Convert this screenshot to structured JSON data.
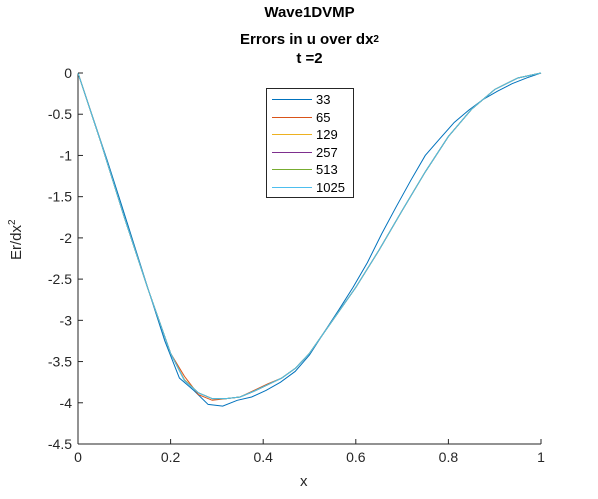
{
  "chart_data": {
    "type": "line",
    "title": [
      "Wave1DVMP",
      "Errors in u over dx",
      "t =2"
    ],
    "title_superscript": "2",
    "xlabel": "x",
    "ylabel": "Er/dx",
    "ylabel_superscript": "2",
    "xlim": [
      0,
      1
    ],
    "ylim": [
      -4.5,
      0
    ],
    "xticks": [
      "0",
      "0.2",
      "0.4",
      "0.6",
      "0.8",
      "1"
    ],
    "yticks": [
      "0",
      "-0.5",
      "-1",
      "-1.5",
      "-2",
      "-2.5",
      "-3",
      "-3.5",
      "-4",
      "-4.5"
    ],
    "legend_position": "top-center",
    "grid": false,
    "series": [
      {
        "name": "33",
        "color": "#0072BD",
        "x": [
          0,
          0.031,
          0.0625,
          0.094,
          0.125,
          0.156,
          0.1875,
          0.219,
          0.25,
          0.281,
          0.3125,
          0.344,
          0.375,
          0.406,
          0.4375,
          0.469,
          0.5,
          0.531,
          0.5625,
          0.594,
          0.625,
          0.656,
          0.6875,
          0.719,
          0.75,
          0.781,
          0.8125,
          0.844,
          0.875,
          0.906,
          0.9375,
          0.969,
          1
        ],
        "y": [
          0,
          -0.52,
          -1.05,
          -1.6,
          -2.15,
          -2.7,
          -3.25,
          -3.7,
          -3.85,
          -4.02,
          -4.04,
          -3.97,
          -3.93,
          -3.85,
          -3.75,
          -3.62,
          -3.42,
          -3.15,
          -2.88,
          -2.6,
          -2.3,
          -1.95,
          -1.62,
          -1.3,
          -1.0,
          -0.8,
          -0.6,
          -0.45,
          -0.32,
          -0.22,
          -0.13,
          -0.06,
          0
        ]
      },
      {
        "name": "65",
        "color": "#D95319",
        "x": [
          0,
          0.05,
          0.1,
          0.15,
          0.2,
          0.23,
          0.26,
          0.29,
          0.32,
          0.35,
          0.38,
          0.41,
          0.44,
          0.47,
          0.5,
          0.55,
          0.6,
          0.65,
          0.7,
          0.75,
          0.8,
          0.85,
          0.9,
          0.95,
          1
        ],
        "y": [
          0,
          -0.85,
          -1.75,
          -2.6,
          -3.4,
          -3.68,
          -3.9,
          -3.97,
          -3.95,
          -3.93,
          -3.85,
          -3.77,
          -3.7,
          -3.58,
          -3.4,
          -3.0,
          -2.6,
          -2.15,
          -1.67,
          -1.2,
          -0.77,
          -0.44,
          -0.2,
          -0.06,
          0
        ]
      },
      {
        "name": "129",
        "color": "#EDB120",
        "x": [
          0,
          0.05,
          0.1,
          0.15,
          0.2,
          0.23,
          0.26,
          0.29,
          0.32,
          0.35,
          0.38,
          0.41,
          0.44,
          0.47,
          0.5,
          0.55,
          0.6,
          0.65,
          0.7,
          0.75,
          0.8,
          0.85,
          0.9,
          0.95,
          1
        ],
        "y": [
          0,
          -0.85,
          -1.75,
          -2.6,
          -3.4,
          -3.72,
          -3.88,
          -3.95,
          -3.95,
          -3.93,
          -3.86,
          -3.78,
          -3.7,
          -3.58,
          -3.4,
          -3.0,
          -2.6,
          -2.15,
          -1.67,
          -1.2,
          -0.77,
          -0.44,
          -0.2,
          -0.06,
          0
        ]
      },
      {
        "name": "257",
        "color": "#7E2F8E",
        "x": [
          0,
          0.05,
          0.1,
          0.15,
          0.2,
          0.23,
          0.26,
          0.29,
          0.32,
          0.35,
          0.38,
          0.41,
          0.44,
          0.47,
          0.5,
          0.55,
          0.6,
          0.65,
          0.7,
          0.75,
          0.8,
          0.85,
          0.9,
          0.95,
          1
        ],
        "y": [
          0,
          -0.85,
          -1.75,
          -2.6,
          -3.4,
          -3.73,
          -3.88,
          -3.95,
          -3.95,
          -3.93,
          -3.86,
          -3.78,
          -3.7,
          -3.58,
          -3.4,
          -3.0,
          -2.6,
          -2.15,
          -1.67,
          -1.2,
          -0.77,
          -0.44,
          -0.2,
          -0.06,
          0
        ]
      },
      {
        "name": "513",
        "color": "#77AC30",
        "x": [
          0,
          0.05,
          0.1,
          0.15,
          0.2,
          0.23,
          0.26,
          0.29,
          0.32,
          0.35,
          0.38,
          0.41,
          0.44,
          0.47,
          0.5,
          0.55,
          0.6,
          0.65,
          0.7,
          0.75,
          0.8,
          0.85,
          0.9,
          0.95,
          1
        ],
        "y": [
          0,
          -0.85,
          -1.75,
          -2.6,
          -3.4,
          -3.73,
          -3.88,
          -3.95,
          -3.95,
          -3.93,
          -3.86,
          -3.78,
          -3.7,
          -3.58,
          -3.4,
          -3.0,
          -2.6,
          -2.15,
          -1.67,
          -1.2,
          -0.77,
          -0.44,
          -0.2,
          -0.06,
          0
        ]
      },
      {
        "name": "1025",
        "color": "#4DBEEE",
        "x": [
          0,
          0.05,
          0.1,
          0.15,
          0.2,
          0.23,
          0.26,
          0.29,
          0.32,
          0.35,
          0.38,
          0.41,
          0.44,
          0.47,
          0.5,
          0.55,
          0.6,
          0.65,
          0.7,
          0.75,
          0.8,
          0.85,
          0.9,
          0.95,
          1
        ],
        "y": [
          0,
          -0.85,
          -1.75,
          -2.6,
          -3.4,
          -3.73,
          -3.88,
          -3.95,
          -3.95,
          -3.93,
          -3.86,
          -3.78,
          -3.7,
          -3.58,
          -3.4,
          -3.0,
          -2.6,
          -2.15,
          -1.67,
          -1.2,
          -0.77,
          -0.44,
          -0.2,
          -0.06,
          0
        ]
      }
    ]
  }
}
